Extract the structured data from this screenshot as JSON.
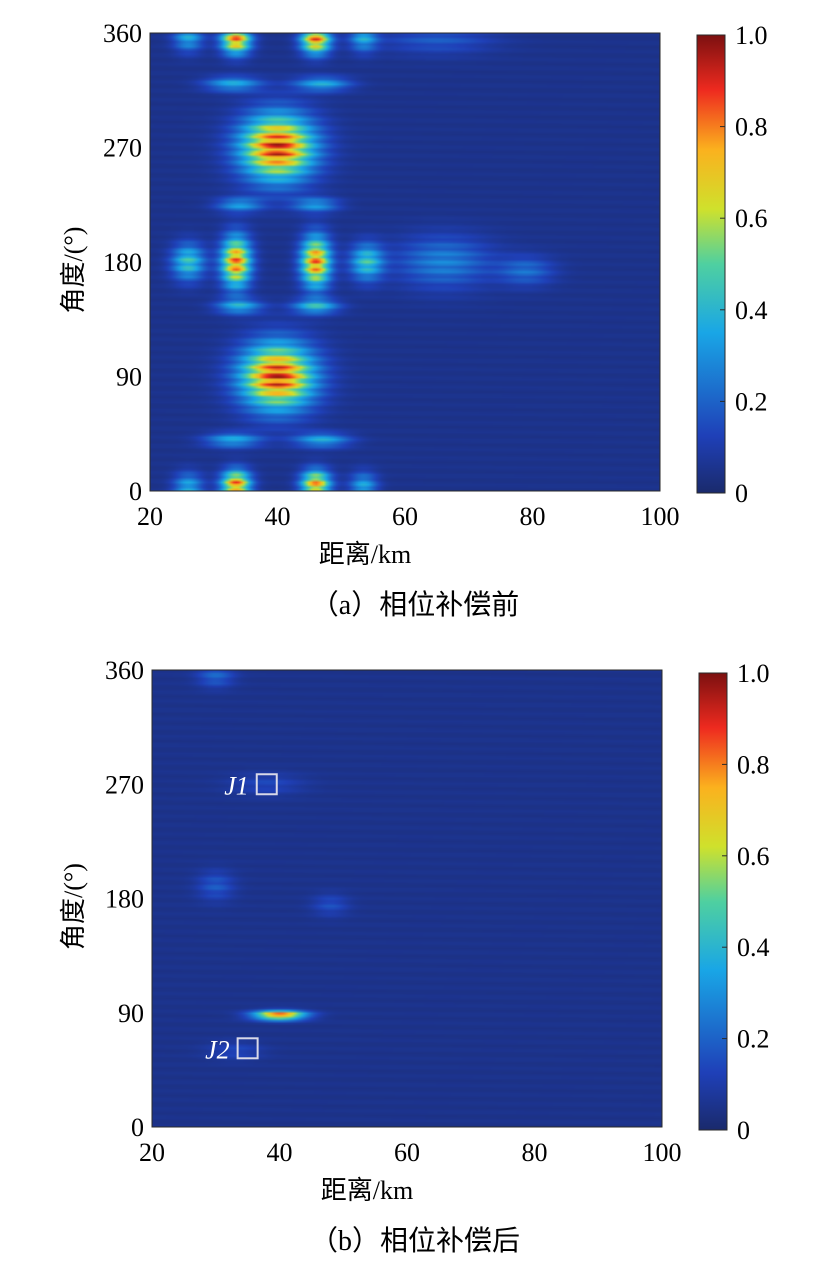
{
  "chart_data": [
    {
      "type": "heatmap",
      "caption": "（a）相位补偿前",
      "xlabel": "距离/km",
      "ylabel": "角度/(°)",
      "xlim": [
        20,
        100
      ],
      "ylim": [
        0,
        360
      ],
      "xticks": [
        "20",
        "40",
        "60",
        "80",
        "100"
      ],
      "yticks": [
        "0",
        "90",
        "180",
        "270",
        "360"
      ],
      "colorbar": {
        "range": [
          0,
          1.0
        ],
        "ticks": [
          "0",
          "0.2",
          "0.4",
          "0.6",
          "0.8",
          "1.0"
        ]
      },
      "hotspots": [
        {
          "x": 33.5,
          "y": 5,
          "v": 0.85,
          "sx": 1.6,
          "sy": 8
        },
        {
          "x": 46,
          "y": 5,
          "v": 0.8,
          "sx": 1.6,
          "sy": 8
        },
        {
          "x": 26,
          "y": 3,
          "v": 0.35,
          "sx": 1.6,
          "sy": 8
        },
        {
          "x": 53.5,
          "y": 3,
          "v": 0.35,
          "sx": 1.5,
          "sy": 8
        },
        {
          "x": 33.5,
          "y": 355,
          "v": 0.85,
          "sx": 1.6,
          "sy": 8
        },
        {
          "x": 46,
          "y": 355,
          "v": 0.85,
          "sx": 1.6,
          "sy": 8
        },
        {
          "x": 26,
          "y": 357,
          "v": 0.35,
          "sx": 1.6,
          "sy": 8
        },
        {
          "x": 53.5,
          "y": 357,
          "v": 0.35,
          "sx": 1.5,
          "sy": 8
        },
        {
          "x": 33.5,
          "y": 180,
          "v": 0.85,
          "sx": 1.6,
          "sy": 14
        },
        {
          "x": 46,
          "y": 180,
          "v": 0.85,
          "sx": 1.6,
          "sy": 14
        },
        {
          "x": 26,
          "y": 180,
          "v": 0.45,
          "sx": 1.8,
          "sy": 10
        },
        {
          "x": 54,
          "y": 180,
          "v": 0.45,
          "sx": 1.8,
          "sy": 10
        },
        {
          "x": 40,
          "y": 270,
          "v": 0.95,
          "sx": 4,
          "sy": 18
        },
        {
          "x": 40,
          "y": 90,
          "v": 0.95,
          "sx": 4,
          "sy": 18
        },
        {
          "x": 34,
          "y": 225,
          "v": 0.3,
          "sx": 2.5,
          "sy": 4
        },
        {
          "x": 46,
          "y": 225,
          "v": 0.3,
          "sx": 2.5,
          "sy": 4
        },
        {
          "x": 34,
          "y": 145,
          "v": 0.35,
          "sx": 2.5,
          "sy": 4
        },
        {
          "x": 46,
          "y": 145,
          "v": 0.4,
          "sx": 2.5,
          "sy": 4
        },
        {
          "x": 33,
          "y": 320,
          "v": 0.35,
          "sx": 3,
          "sy": 4
        },
        {
          "x": 47,
          "y": 320,
          "v": 0.35,
          "sx": 3,
          "sy": 4
        },
        {
          "x": 33,
          "y": 40,
          "v": 0.35,
          "sx": 3,
          "sy": 4
        },
        {
          "x": 47,
          "y": 40,
          "v": 0.35,
          "sx": 3,
          "sy": 4
        },
        {
          "x": 66,
          "y": 180,
          "v": 0.25,
          "sx": 5,
          "sy": 14
        },
        {
          "x": 79,
          "y": 173,
          "v": 0.2,
          "sx": 3,
          "sy": 8
        },
        {
          "x": 65,
          "y": 355,
          "v": 0.15,
          "sx": 6,
          "sy": 8
        }
      ],
      "annotations": []
    },
    {
      "type": "heatmap",
      "caption": "（b）相位补偿后",
      "xlabel": "距离/km",
      "ylabel": "角度/(°)",
      "xlim": [
        20,
        100
      ],
      "ylim": [
        0,
        360
      ],
      "xticks": [
        "20",
        "40",
        "60",
        "80",
        "100"
      ],
      "yticks": [
        "0",
        "90",
        "180",
        "270",
        "360"
      ],
      "colorbar": {
        "range": [
          0,
          1.0
        ],
        "ticks": [
          "0",
          "0.2",
          "0.4",
          "0.6",
          "0.8",
          "1.0"
        ]
      },
      "hotspots": [
        {
          "x": 40,
          "y": 88,
          "v": 0.95,
          "sx": 2.8,
          "sy": 2.5
        },
        {
          "x": 30,
          "y": 355,
          "v": 0.18,
          "sx": 2,
          "sy": 6
        },
        {
          "x": 30,
          "y": 190,
          "v": 0.15,
          "sx": 2,
          "sy": 8
        },
        {
          "x": 48,
          "y": 175,
          "v": 0.12,
          "sx": 2,
          "sy": 6
        },
        {
          "x": 38,
          "y": 270,
          "v": 0.1,
          "sx": 4,
          "sy": 6
        },
        {
          "x": 33,
          "y": 60,
          "v": 0.1,
          "sx": 3,
          "sy": 5
        }
      ],
      "annotations": [
        {
          "label": "J1",
          "x": 38,
          "y": 270
        },
        {
          "label": "J2",
          "x": 35,
          "y": 62
        }
      ]
    }
  ],
  "colors": {
    "colormap": "jet",
    "background": "#ffffff",
    "annotation": "#ffffff"
  }
}
